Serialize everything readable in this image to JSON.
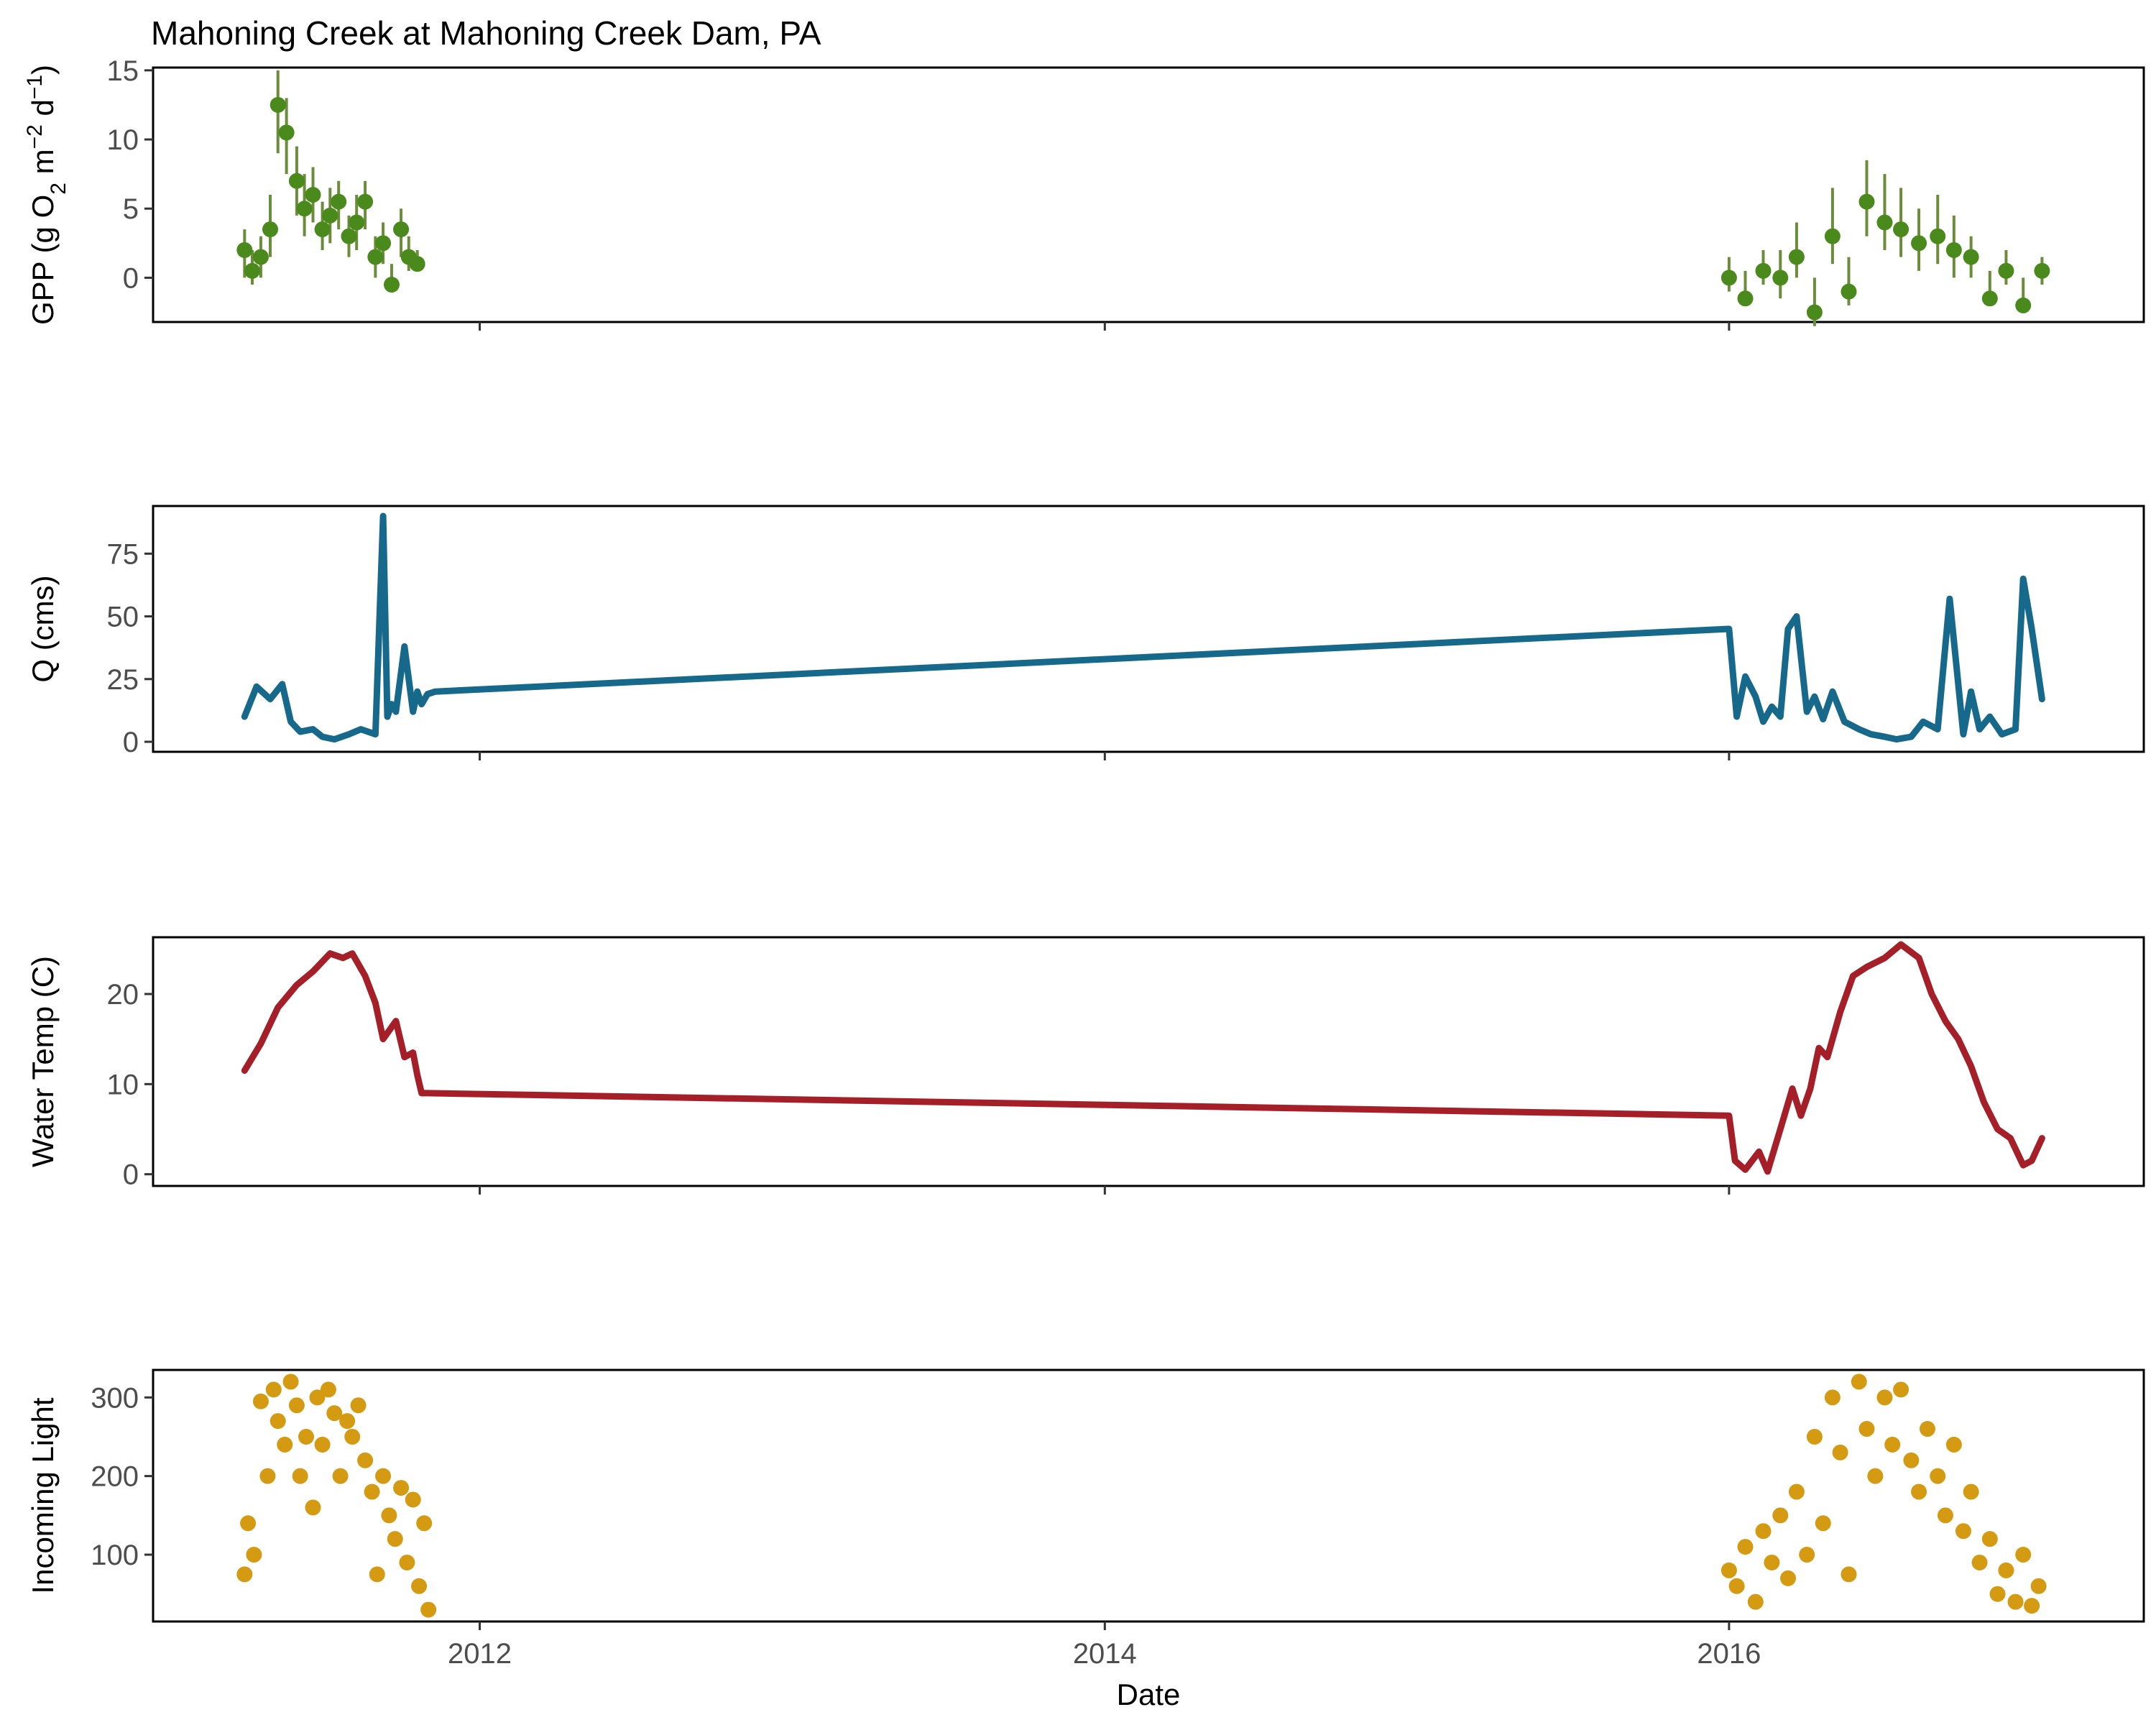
{
  "figure": {
    "title": "Mahoning Creek at Mahoning Creek Dam, PA",
    "xlabel": "Date",
    "x_ticks": [
      "2012",
      "2014",
      "2016"
    ]
  },
  "chart_data": [
    {
      "type": "scatter",
      "ylabel": "GPP (g O2 m-2 d-1)",
      "ylabel_parts": {
        "pre": "GPP (g ",
        "o": "O",
        "o_sub": "2",
        "m": " m",
        "m_sup": "−2",
        "d": " d",
        "d_sup": "−1",
        "post": ")"
      },
      "xlim": [
        "2010-12-15",
        "2017-04-30"
      ],
      "ylim": [
        -3.2,
        15.2
      ],
      "yticks": [
        0,
        5,
        10,
        15
      ],
      "grid": false,
      "legend": "none",
      "error_bars": true,
      "colors": {
        "points": "#4a8a1c",
        "bars": "#6b8c3a"
      },
      "series": [
        {
          "x": [
            "2011-04-01",
            "2011-04-10",
            "2011-04-20",
            "2011-05-01",
            "2011-05-10",
            "2011-05-20",
            "2011-06-01",
            "2011-06-10",
            "2011-06-20",
            "2011-07-01",
            "2011-07-10",
            "2011-07-20",
            "2011-08-01",
            "2011-08-10",
            "2011-08-20",
            "2011-09-01",
            "2011-09-10",
            "2011-09-20",
            "2011-10-01",
            "2011-10-10",
            "2011-10-20"
          ],
          "y": [
            2.0,
            0.5,
            1.5,
            3.5,
            12.5,
            10.5,
            7.0,
            5.0,
            6.0,
            3.5,
            4.5,
            5.5,
            3.0,
            4.0,
            5.5,
            1.5,
            2.5,
            -0.5,
            3.5,
            1.5,
            1.0
          ],
          "y_low": [
            0.0,
            -0.5,
            0.0,
            1.5,
            9.0,
            7.5,
            4.5,
            3.0,
            4.0,
            2.0,
            2.5,
            3.5,
            1.5,
            2.0,
            3.5,
            0.0,
            1.0,
            -1.0,
            1.5,
            0.5,
            0.5
          ],
          "y_high": [
            3.5,
            2.0,
            3.0,
            6.0,
            15.0,
            13.0,
            9.5,
            7.5,
            8.0,
            5.5,
            6.5,
            7.0,
            4.5,
            6.0,
            7.0,
            3.0,
            4.0,
            1.0,
            5.0,
            3.0,
            2.0
          ]
        },
        {
          "x": [
            "2016-01-01",
            "2016-01-20",
            "2016-02-10",
            "2016-03-01",
            "2016-03-20",
            "2016-04-10",
            "2016-05-01",
            "2016-05-20",
            "2016-06-10",
            "2016-07-01",
            "2016-07-20",
            "2016-08-10",
            "2016-09-01",
            "2016-09-20",
            "2016-10-10",
            "2016-11-01",
            "2016-11-20",
            "2016-12-10",
            "2017-01-01"
          ],
          "y": [
            0.0,
            -1.5,
            0.5,
            0.0,
            1.5,
            -2.5,
            3.0,
            -1.0,
            5.5,
            4.0,
            3.5,
            2.5,
            3.0,
            2.0,
            1.5,
            -1.5,
            0.5,
            -2.0,
            0.5
          ],
          "y_low": [
            -1.0,
            -2.0,
            -0.5,
            -1.5,
            0.0,
            -3.5,
            1.0,
            -2.0,
            3.0,
            2.0,
            1.5,
            0.5,
            1.0,
            0.0,
            0.0,
            -2.0,
            -0.5,
            -2.5,
            -0.5
          ],
          "y_high": [
            1.5,
            0.5,
            2.0,
            2.0,
            4.0,
            0.0,
            6.5,
            1.5,
            8.5,
            7.5,
            6.5,
            5.0,
            6.0,
            4.5,
            3.0,
            0.5,
            2.0,
            0.0,
            1.5
          ]
        }
      ]
    },
    {
      "type": "line",
      "ylabel": "Q (cms)",
      "xlim": [
        "2010-12-15",
        "2017-04-30"
      ],
      "ylim": [
        -4,
        94
      ],
      "yticks": [
        0,
        25,
        50,
        75
      ],
      "grid": false,
      "legend": "none",
      "colors": {
        "line": "#16698a"
      },
      "series": [
        {
          "x": [
            "2011-04-01",
            "2011-04-15",
            "2011-05-01",
            "2011-05-15",
            "2011-05-25",
            "2011-06-05",
            "2011-06-20",
            "2011-07-01",
            "2011-07-15",
            "2011-08-01",
            "2011-08-15",
            "2011-09-01",
            "2011-09-10",
            "2011-09-15",
            "2011-09-20",
            "2011-09-25",
            "2011-10-05",
            "2011-10-15",
            "2011-10-20",
            "2011-10-25",
            "2011-11-01",
            "2011-11-10",
            "2016-01-01",
            "2016-01-10",
            "2016-01-20",
            "2016-02-01",
            "2016-02-10",
            "2016-02-20",
            "2016-03-01",
            "2016-03-10",
            "2016-03-20",
            "2016-04-01",
            "2016-04-10",
            "2016-04-20",
            "2016-05-01",
            "2016-05-15",
            "2016-06-01",
            "2016-06-15",
            "2016-07-01",
            "2016-07-15",
            "2016-08-01",
            "2016-08-15",
            "2016-09-01",
            "2016-09-15",
            "2016-10-01",
            "2016-10-10",
            "2016-10-20",
            "2016-11-01",
            "2016-11-15",
            "2016-12-01",
            "2016-12-10",
            "2016-12-20",
            "2017-01-01"
          ],
          "y": [
            10,
            22,
            17,
            23,
            8,
            4,
            5,
            2,
            1,
            3,
            5,
            3,
            90,
            10,
            15,
            12,
            38,
            12,
            20,
            15,
            19,
            20,
            45,
            10,
            26,
            18,
            8,
            14,
            10,
            45,
            50,
            12,
            18,
            9,
            20,
            8,
            5,
            3,
            2,
            1,
            2,
            8,
            5,
            57,
            3,
            20,
            5,
            10,
            3,
            5,
            65,
            45,
            17
          ],
          "name": ""
        }
      ]
    },
    {
      "type": "line",
      "ylabel": "Water Temp (C)",
      "xlim": [
        "2010-12-15",
        "2017-04-30"
      ],
      "ylim": [
        -1.3,
        26.3
      ],
      "yticks": [
        0,
        10,
        20
      ],
      "grid": false,
      "legend": "none",
      "colors": {
        "line": "#a51f28"
      },
      "series": [
        {
          "x": [
            "2011-04-01",
            "2011-04-20",
            "2011-05-10",
            "2011-06-01",
            "2011-06-20",
            "2011-07-10",
            "2011-07-25",
            "2011-08-05",
            "2011-08-20",
            "2011-09-01",
            "2011-09-10",
            "2011-09-25",
            "2011-10-05",
            "2011-10-15",
            "2011-10-20",
            "2011-10-25",
            "2011-11-01",
            "2016-01-01",
            "2016-01-08",
            "2016-01-20",
            "2016-02-05",
            "2016-02-15",
            "2016-03-01",
            "2016-03-15",
            "2016-03-25",
            "2016-04-05",
            "2016-04-15",
            "2016-04-25",
            "2016-05-10",
            "2016-05-25",
            "2016-06-10",
            "2016-07-01",
            "2016-07-20",
            "2016-08-10",
            "2016-08-25",
            "2016-09-10",
            "2016-09-25",
            "2016-10-10",
            "2016-10-25",
            "2016-11-10",
            "2016-11-25",
            "2016-12-10",
            "2016-12-20",
            "2017-01-01"
          ],
          "y": [
            11.5,
            14.5,
            18.5,
            21,
            22.5,
            24.5,
            24,
            24.5,
            22,
            19,
            15,
            17,
            13,
            13.5,
            11,
            9,
            9,
            6.5,
            1.5,
            0.5,
            2.5,
            0.3,
            5,
            9.5,
            6.5,
            9.5,
            14,
            13,
            18,
            22,
            23,
            24,
            25.5,
            24,
            20,
            17,
            15,
            12,
            8,
            5,
            4,
            1,
            1.5,
            4
          ],
          "name": ""
        }
      ]
    },
    {
      "type": "scatter",
      "ylabel": "Incoming Light",
      "xlim": [
        "2010-12-15",
        "2017-04-30"
      ],
      "ylim": [
        15,
        335
      ],
      "yticks": [
        100,
        200,
        300
      ],
      "grid": false,
      "legend": "none",
      "colors": {
        "points": "#d49a12"
      },
      "series": [
        {
          "x": [
            "2011-04-01",
            "2011-04-05",
            "2011-04-12",
            "2011-04-20",
            "2011-04-28",
            "2011-05-05",
            "2011-05-10",
            "2011-05-18",
            "2011-05-25",
            "2011-06-01",
            "2011-06-05",
            "2011-06-12",
            "2011-06-20",
            "2011-06-25",
            "2011-07-01",
            "2011-07-08",
            "2011-07-15",
            "2011-07-22",
            "2011-07-30",
            "2011-08-05",
            "2011-08-12",
            "2011-08-20",
            "2011-08-28",
            "2011-09-03",
            "2011-09-10",
            "2011-09-17",
            "2011-09-24",
            "2011-10-01",
            "2011-10-08",
            "2011-10-15",
            "2011-10-22",
            "2011-10-28",
            "2011-11-02",
            "2016-01-01",
            "2016-01-10",
            "2016-01-20",
            "2016-02-01",
            "2016-02-10",
            "2016-02-20",
            "2016-03-01",
            "2016-03-10",
            "2016-03-20",
            "2016-04-01",
            "2016-04-10",
            "2016-04-20",
            "2016-05-01",
            "2016-05-10",
            "2016-05-20",
            "2016-06-01",
            "2016-06-10",
            "2016-06-20",
            "2016-07-01",
            "2016-07-10",
            "2016-07-20",
            "2016-08-01",
            "2016-08-10",
            "2016-08-20",
            "2016-09-01",
            "2016-09-10",
            "2016-09-20",
            "2016-10-01",
            "2016-10-10",
            "2016-10-20",
            "2016-11-01",
            "2016-11-10",
            "2016-11-20",
            "2016-12-01",
            "2016-12-10",
            "2016-12-20",
            "2016-12-28"
          ],
          "y": [
            75,
            140,
            100,
            295,
            200,
            310,
            270,
            240,
            320,
            290,
            200,
            250,
            160,
            300,
            240,
            310,
            280,
            200,
            270,
            250,
            290,
            220,
            180,
            75,
            200,
            150,
            120,
            185,
            90,
            170,
            60,
            140,
            30,
            80,
            60,
            110,
            40,
            130,
            90,
            150,
            70,
            180,
            100,
            250,
            140,
            300,
            230,
            75,
            320,
            260,
            200,
            300,
            240,
            310,
            220,
            180,
            260,
            200,
            150,
            240,
            130,
            180,
            90,
            120,
            50,
            80,
            40,
            100,
            35,
            60
          ],
          "name": ""
        }
      ]
    }
  ]
}
